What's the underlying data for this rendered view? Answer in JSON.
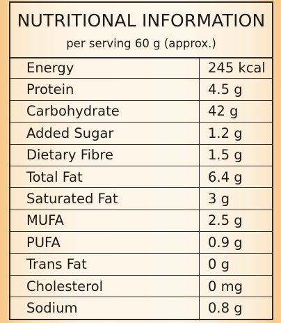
{
  "header": {
    "title": "NUTRITIONAL INFORMATION",
    "subtitle": "per serving 60 g (approx.)"
  },
  "rows": [
    {
      "name": "Energy",
      "value": "245 kcal"
    },
    {
      "name": "Protein",
      "value": "4.5 g"
    },
    {
      "name": "Carbohydrate",
      "value": "42 g"
    },
    {
      "name": "Added Sugar",
      "value": "1.2 g"
    },
    {
      "name": "Dietary Fibre",
      "value": "1.5 g"
    },
    {
      "name": "Total Fat",
      "value": "6.4 g"
    },
    {
      "name": "Saturated Fat",
      "value": "3 g"
    },
    {
      "name": "MUFA",
      "value": "2.5 g"
    },
    {
      "name": "PUFA",
      "value": "0.9 g"
    },
    {
      "name": "Trans Fat",
      "value": "0 g"
    },
    {
      "name": "Cholesterol",
      "value": "0 mg"
    },
    {
      "name": "Sodium",
      "value": "0.8 g"
    }
  ]
}
